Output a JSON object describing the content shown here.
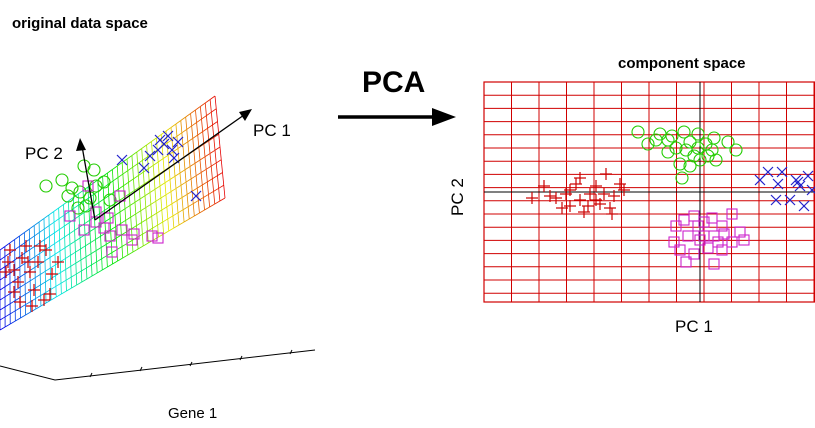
{
  "left_panel": {
    "title": "original data space",
    "pc1_label": "PC 1",
    "pc2_label": "PC 2",
    "gene1_label": "Gene 1"
  },
  "transform": {
    "label": "PCA"
  },
  "right_panel": {
    "title": "component space",
    "xlabel": "PC 1",
    "ylabel": "PC 2"
  },
  "colors": {
    "grid": "#d00000",
    "cluster_plus": "#cc0000",
    "cluster_circle": "#22cc00",
    "cluster_square": "#cc22cc",
    "cluster_cross": "#2222cc",
    "axis": "#000000"
  },
  "icons": [
    "arrow-right-icon",
    "plus-marker",
    "circle-marker",
    "square-marker",
    "cross-marker"
  ]
}
